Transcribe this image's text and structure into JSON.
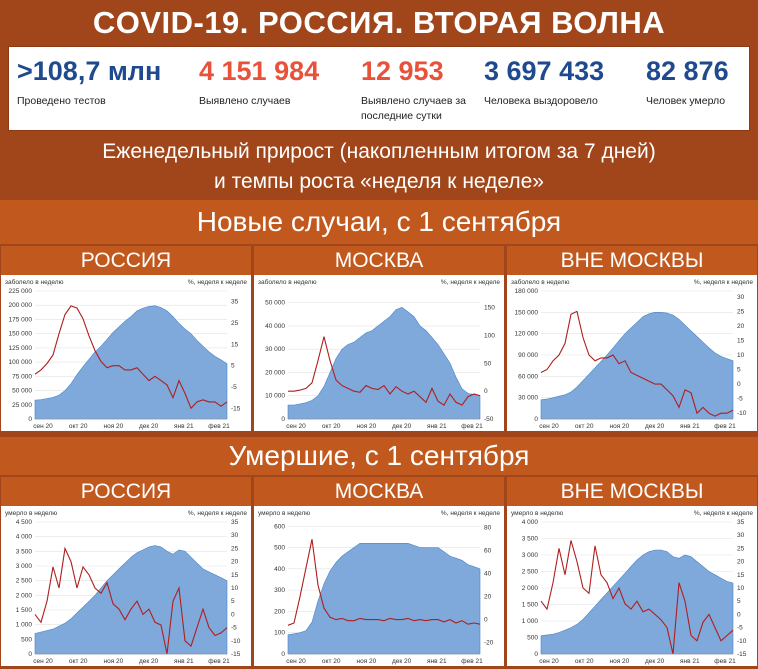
{
  "title": "COVID-19. РОССИЯ. ВТОРАЯ ВОЛНА",
  "stats": [
    {
      "value": ">108,7 млн",
      "label": "Проведено тестов",
      "color": "#1f4a8f"
    },
    {
      "value": "4 151 984",
      "label": "Выявлено случаев",
      "color": "#e8523a"
    },
    {
      "value": "12 953",
      "label": "Выявлено случаев за последние сутки",
      "color": "#e8523a"
    },
    {
      "value": "3 697 433",
      "label": "Человека выздоровело",
      "color": "#1f4a8f"
    },
    {
      "value": "82 876",
      "label": "Человек умерло",
      "color": "#1f4a8f"
    }
  ],
  "subtitle_line1": "Еженедельный прирост (накопленным итогом за 7 дней)",
  "subtitle_line2": "и темпы роста «неделя к неделе»",
  "section_cases": "Новые случаи, с 1 сентября",
  "section_deaths": "Умершие, с 1 сентября",
  "colors": {
    "area": "#7fa9db",
    "area_stroke": "#4a86c8",
    "line": "#b01e1e",
    "title_bg": "#a0461a",
    "band_bg": "#c1591f"
  },
  "chart_data": [
    {
      "type": "area",
      "panel": "РОССИЯ",
      "ylabel": "заболело в неделю",
      "y2label": "%, неделя к неделе",
      "x_ticks": [
        "сен 20",
        "окт 20",
        "ноя 20",
        "дек 20",
        "янв 21",
        "фев 21"
      ],
      "yticks": [
        "0",
        "25 000",
        "50 000",
        "75 000",
        "100 000",
        "125 000",
        "150 000",
        "175 000",
        "200 000",
        "225 000"
      ],
      "ylim": [
        0,
        225000
      ],
      "y2ticks": [
        "-15",
        "-5",
        "5",
        "15",
        "25",
        "35"
      ],
      "y2lim": [
        -20,
        40
      ],
      "area": [
        33000,
        34000,
        36000,
        38000,
        42000,
        50000,
        62000,
        78000,
        92000,
        105000,
        118000,
        128000,
        140000,
        152000,
        162000,
        172000,
        180000,
        190000,
        195000,
        198000,
        199000,
        196000,
        190000,
        180000,
        168000,
        158000,
        150000,
        138000,
        128000,
        118000,
        110000,
        104000,
        97000
      ],
      "line": [
        1,
        3,
        6,
        10,
        20,
        29,
        33,
        32,
        27,
        19,
        12,
        7,
        4,
        5,
        5,
        3,
        3,
        4,
        1,
        -2,
        0,
        -2,
        -4,
        -10,
        -2,
        -8,
        -15,
        -12,
        -11,
        -12,
        -12,
        -14,
        -12
      ]
    },
    {
      "type": "area",
      "panel": "МОСКВА",
      "ylabel": "заболело в неделю",
      "y2label": "%, неделя к неделе",
      "x_ticks": [
        "сен 20",
        "окт 20",
        "ноя 20",
        "дек 20",
        "янв 21",
        "фев 21"
      ],
      "yticks": [
        "0",
        "10 000",
        "20 000",
        "30 000",
        "40 000",
        "50 000"
      ],
      "ylim": [
        0,
        55000
      ],
      "y2ticks": [
        "-50",
        "0",
        "50",
        "100",
        "150"
      ],
      "y2lim": [
        -50,
        180
      ],
      "area": [
        6000,
        6000,
        6500,
        7000,
        8000,
        10000,
        14000,
        20000,
        26000,
        30000,
        32000,
        33000,
        35000,
        37000,
        38000,
        40000,
        42000,
        44000,
        47000,
        48000,
        46000,
        44000,
        40000,
        38000,
        35000,
        32000,
        28000,
        24000,
        18000,
        13000,
        11000,
        10500,
        10000
      ],
      "line": [
        0,
        0,
        2,
        5,
        15,
        55,
        98,
        55,
        20,
        10,
        5,
        0,
        -2,
        10,
        5,
        3,
        10,
        -5,
        8,
        0,
        -5,
        0,
        -10,
        -20,
        5,
        -18,
        -25,
        -5,
        -20,
        -25,
        -10,
        -5,
        -8
      ]
    },
    {
      "type": "area",
      "panel": "ВНЕ МОСКВЫ",
      "ylabel": "заболело в неделю",
      "y2label": "%, неделя к неделе",
      "x_ticks": [
        "сен 20",
        "окт 20",
        "ноя 20",
        "дек 20",
        "янв 21",
        "фев 21"
      ],
      "yticks": [
        "0",
        "30 000",
        "60 000",
        "90 000",
        "120 000",
        "150 000",
        "180 000"
      ],
      "ylim": [
        0,
        180000
      ],
      "y2ticks": [
        "-10",
        "-5",
        "0",
        "5",
        "10",
        "15",
        "20",
        "25",
        "30"
      ],
      "y2lim": [
        -12,
        32
      ],
      "area": [
        27000,
        28000,
        30000,
        32000,
        34000,
        38000,
        45000,
        54000,
        63000,
        72000,
        81000,
        90000,
        100000,
        110000,
        120000,
        128000,
        136000,
        144000,
        148000,
        150000,
        150000,
        149000,
        146000,
        140000,
        132000,
        124000,
        116000,
        108000,
        100000,
        93000,
        88000,
        85000,
        82000
      ],
      "line": [
        4,
        5,
        8,
        10,
        14,
        24,
        25,
        16,
        10,
        8,
        9,
        9,
        10,
        7,
        8,
        4,
        3,
        2,
        1,
        0,
        0,
        -2,
        -4,
        -8,
        -2,
        -3,
        -10,
        -8,
        -10,
        -11,
        -10,
        -10,
        -9
      ]
    },
    {
      "type": "area",
      "panel": "РОССИЯ",
      "ylabel": "умерло в неделю",
      "y2label": "%, неделя к неделе",
      "x_ticks": [
        "сен 20",
        "окт 20",
        "ноя 20",
        "дек 20",
        "янв 21",
        "фев 21"
      ],
      "yticks": [
        "0",
        "500",
        "1 000",
        "1 500",
        "2 000",
        "2 500",
        "3 000",
        "3 500",
        "4 000",
        "4 500"
      ],
      "ylim": [
        0,
        4500
      ],
      "y2ticks": [
        "-15",
        "-10",
        "-5",
        "0",
        "5",
        "10",
        "15",
        "20",
        "25",
        "30",
        "35"
      ],
      "y2lim": [
        -15,
        35
      ],
      "area": [
        700,
        750,
        800,
        850,
        950,
        1050,
        1200,
        1400,
        1600,
        1800,
        2000,
        2250,
        2500,
        2700,
        2900,
        3100,
        3300,
        3450,
        3550,
        3650,
        3700,
        3650,
        3500,
        3400,
        3550,
        3500,
        3300,
        3100,
        2900,
        2800,
        2700,
        2600,
        2500
      ],
      "line": [
        0,
        -3,
        5,
        18,
        10,
        25,
        20,
        10,
        18,
        15,
        10,
        8,
        12,
        4,
        2,
        -2,
        2,
        5,
        0,
        2,
        -3,
        -4,
        -15,
        5,
        10,
        -10,
        -12,
        -5,
        2,
        -5,
        -8,
        -7,
        -5
      ]
    },
    {
      "type": "area",
      "panel": "МОСКВА",
      "ylabel": "умерло в неделю",
      "y2label": "%, неделя к неделе",
      "x_ticks": [
        "сен 20",
        "окт 20",
        "ноя 20",
        "дек 20",
        "янв 21",
        "фев 21"
      ],
      "yticks": [
        "0",
        "100",
        "200",
        "300",
        "400",
        "500",
        "600"
      ],
      "ylim": [
        0,
        620
      ],
      "y2ticks": [
        "-20",
        "0",
        "20",
        "40",
        "60",
        "80"
      ],
      "y2lim": [
        -30,
        85
      ],
      "area": [
        90,
        95,
        100,
        110,
        150,
        250,
        330,
        390,
        430,
        460,
        480,
        500,
        520,
        520,
        520,
        520,
        520,
        520,
        520,
        520,
        520,
        510,
        500,
        500,
        500,
        500,
        480,
        460,
        450,
        440,
        420,
        410,
        400
      ],
      "line": [
        -5,
        -3,
        20,
        45,
        70,
        30,
        10,
        2,
        0,
        1,
        -1,
        -1,
        1,
        0,
        0,
        0,
        -1,
        1,
        0,
        0,
        1,
        -1,
        0,
        -1,
        0,
        0,
        -2,
        0,
        -3,
        -1,
        -4,
        -3,
        -4
      ]
    },
    {
      "type": "area",
      "panel": "ВНЕ МОСКВЫ",
      "ylabel": "умерло в неделю",
      "y2label": "%, неделя к неделе",
      "x_ticks": [
        "сен 20",
        "окт 20",
        "ноя 20",
        "дек 20",
        "янв 21",
        "фев 21"
      ],
      "yticks": [
        "0",
        "500",
        "1 000",
        "1 500",
        "2 000",
        "2 500",
        "3 000",
        "3 500",
        "4 000"
      ],
      "ylim": [
        0,
        4000
      ],
      "y2ticks": [
        "-15",
        "-10",
        "-5",
        "0",
        "5",
        "10",
        "15",
        "20",
        "25",
        "30",
        "35"
      ],
      "y2lim": [
        -15,
        35
      ],
      "area": [
        550,
        580,
        600,
        650,
        720,
        800,
        900,
        1050,
        1250,
        1450,
        1650,
        1850,
        2050,
        2250,
        2450,
        2650,
        2850,
        3000,
        3100,
        3150,
        3150,
        3100,
        2950,
        2900,
        3000,
        2950,
        2800,
        2650,
        2500,
        2400,
        2300,
        2200,
        2150
      ],
      "line": [
        5,
        2,
        12,
        25,
        15,
        28,
        20,
        10,
        8,
        26,
        15,
        12,
        6,
        10,
        4,
        2,
        5,
        1,
        2,
        0,
        -2,
        -5,
        -15,
        12,
        5,
        -8,
        -10,
        -3,
        0,
        -5,
        -10,
        -8,
        -6
      ]
    }
  ]
}
